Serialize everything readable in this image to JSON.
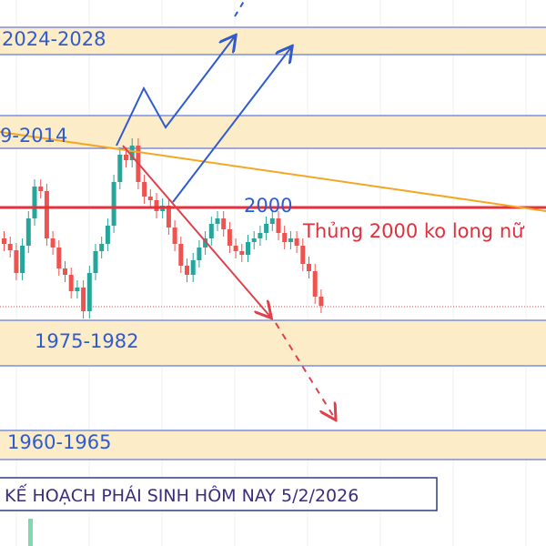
{
  "zones": [
    "2024-2028",
    "9-2014",
    "1975-1982",
    "1960-1965"
  ],
  "level_label": "2000",
  "note": "Thủng 2000 ko long nữ",
  "title": "KẾ HOẠCH PHÁI SINH HÔM NAY 5/2/2026"
}
